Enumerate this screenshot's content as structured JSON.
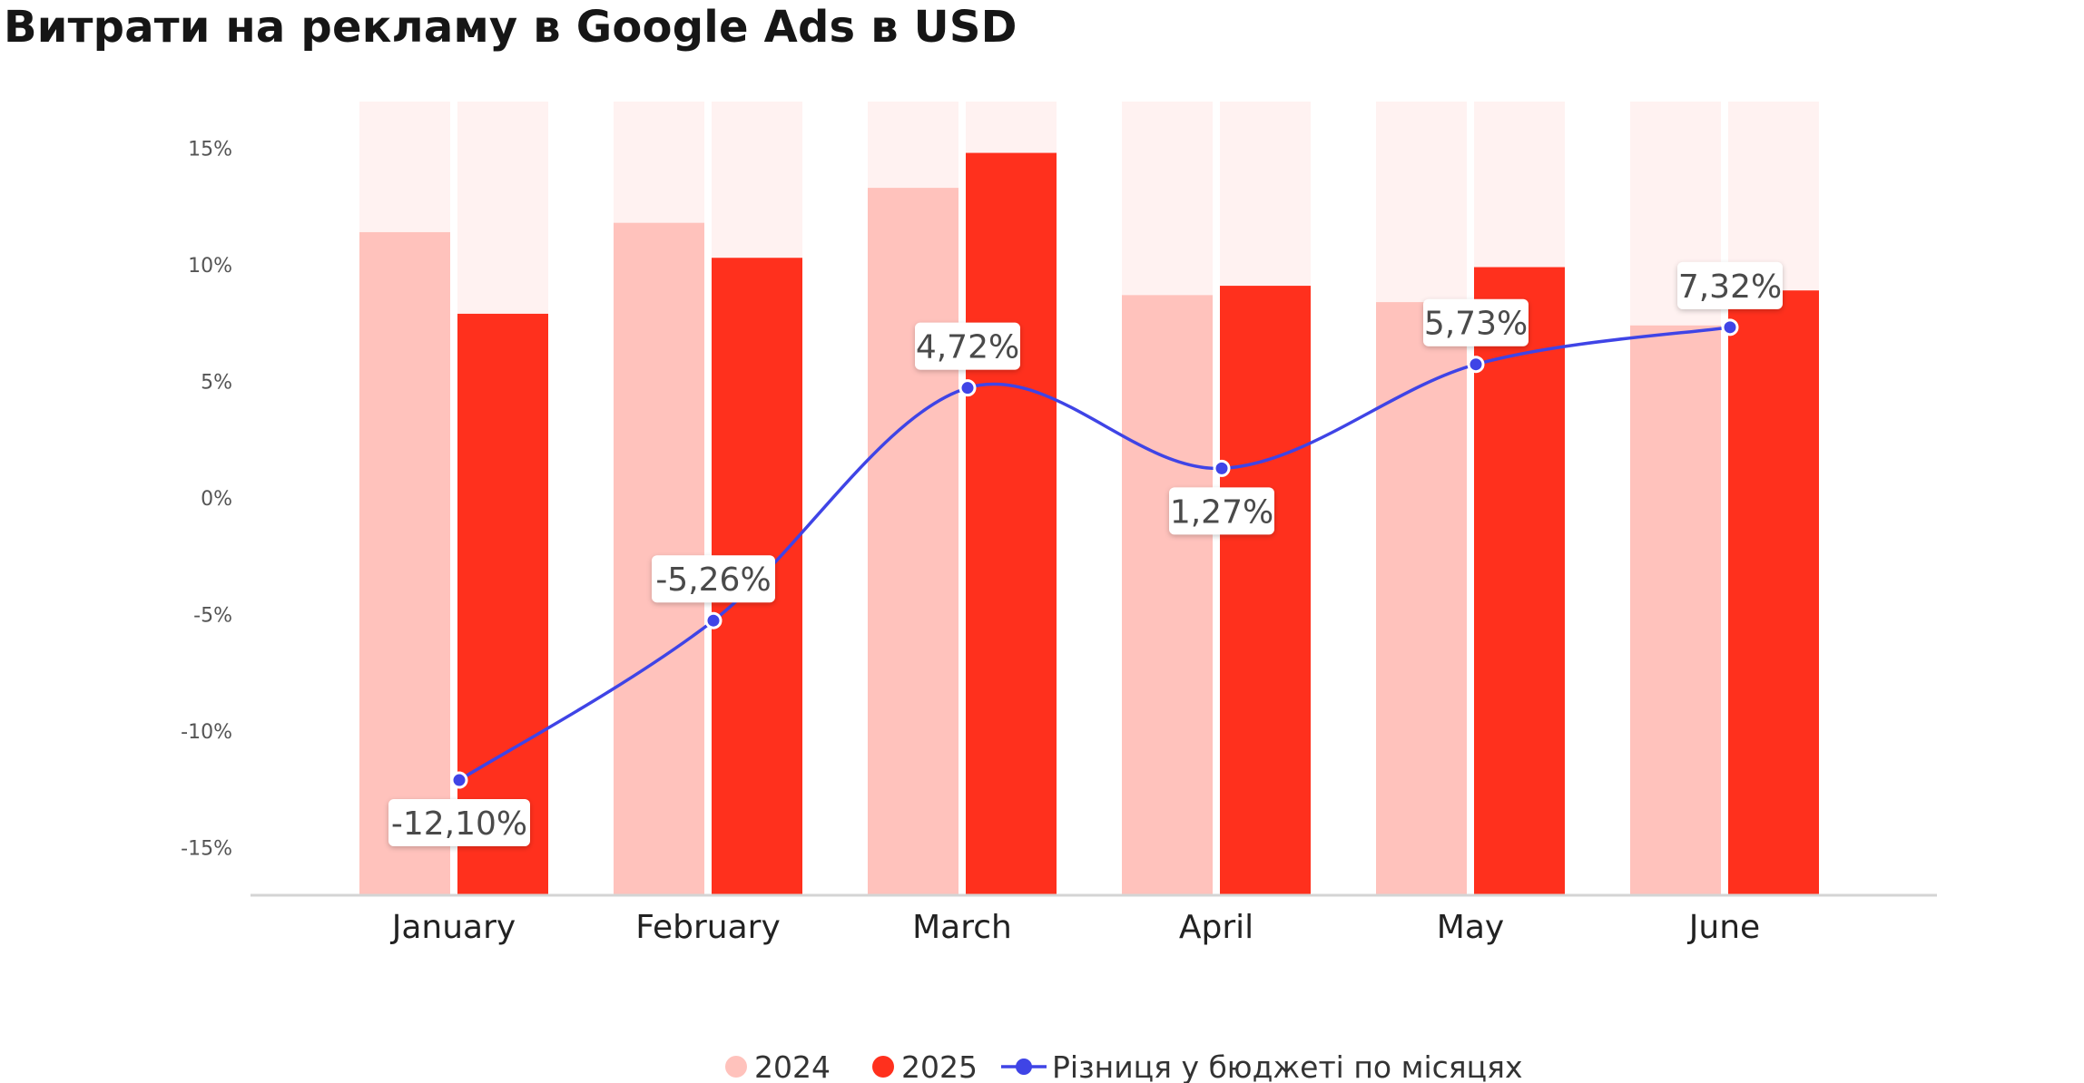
{
  "title": "Витрати на рекламу в Google Ads в USD",
  "colors": {
    "bar_2024": "#ffc2bc",
    "bar_2025": "#ff301d",
    "bar_track": "#fff2f1",
    "line": "#3f44e6",
    "axis": "#d4d4d4"
  },
  "chart_data": {
    "type": "bar",
    "categories": [
      "January",
      "February",
      "March",
      "April",
      "May",
      "June"
    ],
    "yticks": [
      "15%",
      "10%",
      "5%",
      "0%",
      "-5%",
      "-10%",
      "-15%"
    ],
    "ylim": [
      -17,
      17
    ],
    "grid": false,
    "legend_position": "bottom-center",
    "series": [
      {
        "name": "2024",
        "type": "bar",
        "values": [
          11.4,
          11.8,
          13.3,
          8.7,
          8.4,
          7.4
        ]
      },
      {
        "name": "2025",
        "type": "bar",
        "values": [
          7.9,
          10.3,
          14.8,
          9.1,
          9.9,
          8.9
        ]
      },
      {
        "name": "Різниця у бюджеті по місяцях",
        "type": "line",
        "values": [
          -12.1,
          -5.26,
          4.72,
          1.27,
          5.73,
          7.32
        ]
      }
    ],
    "data_labels": [
      "-12,10%",
      "-5,26%",
      "4,72%",
      "1,27%",
      "5,73%",
      "7,32%"
    ]
  }
}
